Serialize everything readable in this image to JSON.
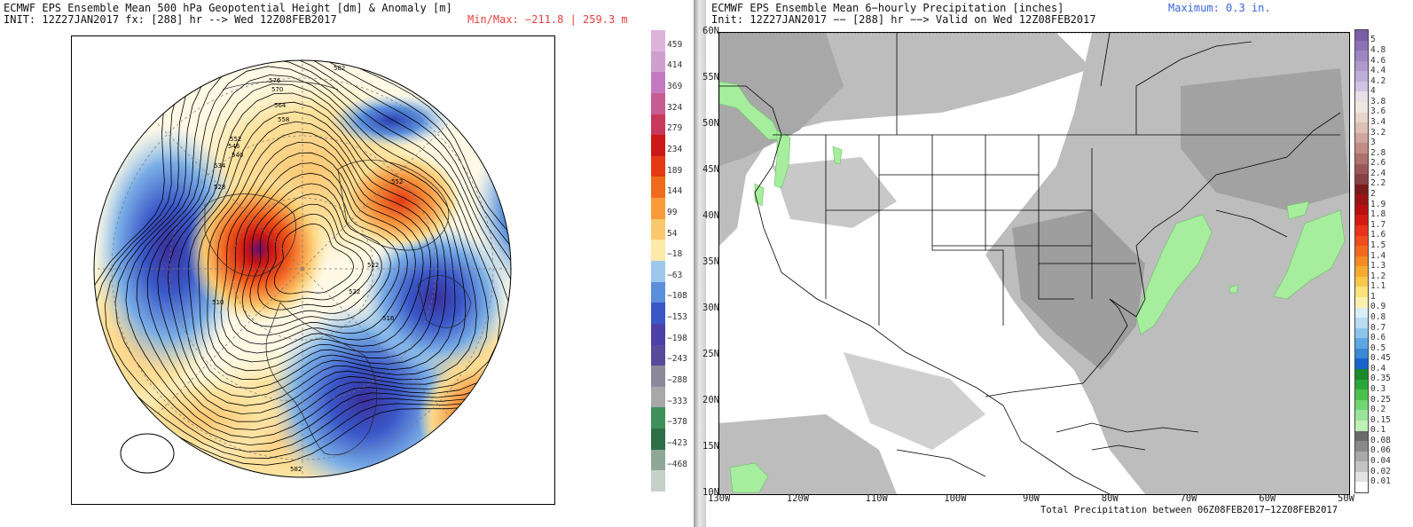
{
  "left": {
    "title_line1": "ECMWF EPS Ensemble Mean 500 hPa Geopotential Height [dm] & Anomaly [m]",
    "title_line2": "INIT: 12Z27JAN2017 fx: [288] hr --> Wed 12Z08FEB2017",
    "minmax": "Min/Max: −211.8 | 259.3 m",
    "colorbar_labels": [
      "459",
      "414",
      "369",
      "324",
      "279",
      "234",
      "189",
      "144",
      "99",
      "54",
      "−18",
      "−63",
      "−108",
      "−153",
      "−198",
      "−243",
      "−288",
      "−333",
      "−378",
      "−423",
      "−468"
    ],
    "colorbar_colors": [
      "#dcb4dc",
      "#cfa0cf",
      "#c47ac0",
      "#c75c92",
      "#c8385a",
      "#cc1818",
      "#e23a12",
      "#f06a1c",
      "#f89b3a",
      "#fbc86c",
      "#fde9a8",
      "#9cc8ec",
      "#5b8fdc",
      "#3a57c8",
      "#4d3fa8",
      "#5a4a9a",
      "#8a8a9a",
      "#a8a8a8",
      "#3f8f5a",
      "#2f6e47",
      "#8ea897",
      "#c4d0c8"
    ],
    "contour_labels": [
      "582",
      "576",
      "570",
      "564",
      "558",
      "552",
      "546",
      "540",
      "534",
      "528",
      "522",
      "516",
      "510",
      "582",
      "552",
      "522"
    ]
  },
  "right": {
    "title_line1": "ECMWF EPS Ensemble Mean 6−hourly Precipitation [inches]",
    "title_line2": "Init: 12Z27JAN2017 −− [288] hr −−> Valid on Wed 12Z08FEB2017",
    "maximum": "Maximum: 0.3 in.",
    "footer": "Total Precipitation between 06Z08FEB2017−12Z08FEB2017",
    "lat_labels": [
      "60N",
      "55N",
      "50N",
      "45N",
      "40N",
      "35N",
      "30N",
      "25N",
      "20N",
      "15N",
      "10N"
    ],
    "lon_labels": [
      "130W",
      "120W",
      "110W",
      "100W",
      "90W",
      "80W",
      "70W",
      "60W",
      "50W"
    ],
    "colorbar_labels": [
      "5",
      "4.8",
      "4.6",
      "4.4",
      "4.2",
      "4",
      "3.8",
      "3.6",
      "3.4",
      "3.2",
      "3",
      "2.8",
      "2.6",
      "2.4",
      "2.2",
      "2",
      "1.9",
      "1.8",
      "1.7",
      "1.6",
      "1.5",
      "1.4",
      "1.3",
      "1.2",
      "1.1",
      "1",
      "0.9",
      "0.8",
      "0.7",
      "0.6",
      "0.5",
      "0.45",
      "0.4",
      "0.35",
      "0.3",
      "0.25",
      "0.2",
      "0.15",
      "0.1",
      "0.08",
      "0.06",
      "0.04",
      "0.02",
      "0.01"
    ],
    "colorbar_colors": [
      "#7b5ea8",
      "#8c72b5",
      "#9d86c2",
      "#ae9acd",
      "#bfaed8",
      "#cfc2e2",
      "#e7e0e8",
      "#efe6e0",
      "#e8d6cc",
      "#dcc0b4",
      "#cfa79c",
      "#c08c84",
      "#ae716c",
      "#9c5856",
      "#8a4040",
      "#7a1a1a",
      "#9a1414",
      "#b81010",
      "#d41a10",
      "#e8331a",
      "#f04d1c",
      "#f26a1e",
      "#f38a22",
      "#f5aa30",
      "#f8c84c",
      "#fbe27a",
      "#fdf1b0",
      "#d8eef8",
      "#b8dcf2",
      "#8cc4ec",
      "#5ea8e2",
      "#3a88d8",
      "#1a62cc",
      "#1a8a2a",
      "#2aa83a",
      "#4cc04c",
      "#72d472",
      "#9ae49a",
      "#bff0b8",
      "#6a6a6a",
      "#8a8a8a",
      "#a8a8a8",
      "#c4c4c4",
      "#e2e2e2",
      "#ffffff"
    ]
  }
}
